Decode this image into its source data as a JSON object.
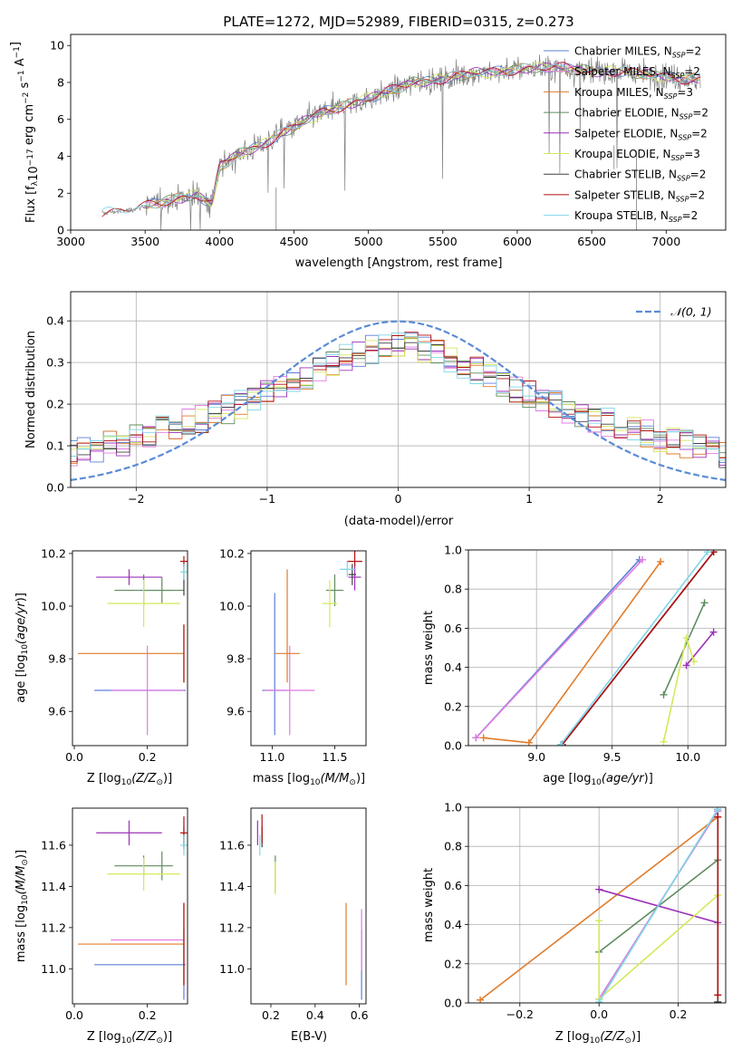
{
  "figure_title": "PLATE=1272, MJD=52989, FIBERID=0315, z=0.273",
  "series": [
    {
      "name": "Chabrier MILES",
      "suffix": ", N_SSP=2",
      "color": "#5b7fd6"
    },
    {
      "name": "Salpeter MILES",
      "suffix": ", N_SSP=2",
      "color": "#e07be0"
    },
    {
      "name": "Kroupa MILES",
      "suffix": ", N_SSP=3",
      "color": "#e07b2a"
    },
    {
      "name": "Chabrier ELODIE",
      "suffix": ", N_SSP=2",
      "color": "#5e8c5e"
    },
    {
      "name": "Salpeter ELODIE",
      "suffix": ", N_SSP=2",
      "color": "#9b30b8"
    },
    {
      "name": "Kroupa ELODIE",
      "suffix": ", N_SSP=3",
      "color": "#d6e85a"
    },
    {
      "name": "Chabrier STELIB",
      "suffix": ", N_SSP=2",
      "color": "#404040"
    },
    {
      "name": "Salpeter STELIB",
      "suffix": ", N_SSP=2",
      "color": "#b01010"
    },
    {
      "name": "Kroupa STELIB",
      "suffix": ", N_SSP=2",
      "color": "#7fd6e8"
    }
  ],
  "chart_data": [
    {
      "id": "spectrum",
      "type": "line",
      "title": "PLATE=1272, MJD=52989, FIBERID=0315, z=0.273",
      "xlabel": "wavelength [Angstrom, rest frame]",
      "ylabel": "Flux [f_λ10^-17 erg cm^-2 s^-1 A^-1]",
      "xlim": [
        3000,
        7400
      ],
      "ylim": [
        0,
        10.6
      ],
      "xticks": [
        3000,
        3500,
        4000,
        4500,
        5000,
        5500,
        6000,
        6500,
        7000
      ],
      "yticks": [
        0,
        2,
        4,
        6,
        8,
        10
      ],
      "data_color": "#808080",
      "continuum": {
        "x": [
          3200,
          3400,
          3550,
          3700,
          3850,
          3950,
          4000,
          4100,
          4300,
          4500,
          4700,
          4900,
          5100,
          5300,
          5500,
          5700,
          5900,
          6100,
          6300,
          6500,
          6700,
          6900,
          7100,
          7230
        ],
        "y": [
          0.9,
          1.1,
          1.4,
          1.7,
          1.9,
          1.4,
          3.4,
          4.0,
          4.7,
          5.6,
          6.4,
          6.9,
          7.4,
          8.0,
          8.2,
          8.5,
          8.6,
          8.8,
          8.8,
          8.6,
          8.6,
          8.4,
          8.2,
          8.2
        ]
      },
      "legend": "upper right"
    },
    {
      "id": "residuals",
      "type": "histogram",
      "xlabel": "(data-model)/error",
      "ylabel": "Normed distribution",
      "xlim": [
        -2.5,
        2.5
      ],
      "ylim": [
        0,
        0.47
      ],
      "xticks": [
        -2,
        -1,
        0,
        1,
        2
      ],
      "yticks": [
        0,
        0.1,
        0.2,
        0.3,
        0.4
      ],
      "bin_width": 0.1,
      "reference": {
        "label": "𝒩(0, 1)",
        "mean": 0,
        "sigma": 1,
        "color": "#5b8bd6"
      },
      "legend": "upper right",
      "grid": true
    },
    {
      "id": "age_vs_Z",
      "type": "errorbar",
      "xlabel": "Z [log10(Z/Z⊙)]",
      "ylabel": "age [log10(age/yr)]",
      "xlim": [
        -0.005,
        0.31
      ],
      "ylim": [
        9.47,
        10.21
      ],
      "xticks": [
        0.0,
        0.2
      ],
      "yticks": [
        9.6,
        9.8,
        10.0,
        10.2
      ],
      "points": [
        {
          "s": 0,
          "x": 0.18,
          "xerr": [
            0.125,
            0.125
          ],
          "y": 9.68,
          "yerr": [
            0,
            0
          ]
        },
        {
          "s": 1,
          "x": 0.2,
          "xerr": [
            0.1,
            0.1
          ],
          "y": 9.68,
          "yerr": [
            0.17,
            0.17
          ]
        },
        {
          "s": 2,
          "x": 0.155,
          "xerr": [
            0.145,
            0.145
          ],
          "y": 9.82,
          "yerr": [
            0,
            0
          ]
        },
        {
          "s": 2,
          "x": 0.3,
          "xerr": [
            0,
            0
          ],
          "y": 9.82,
          "yerr": [
            0.11,
            0.11
          ]
        },
        {
          "s": 3,
          "x": 0.24,
          "xerr": [
            0.06,
            0.06
          ],
          "y": 10.06,
          "yerr": [
            0.05,
            0.05
          ]
        },
        {
          "s": 3,
          "x": 0.19,
          "xerr": [
            0.08,
            0.08
          ],
          "y": 10.06,
          "yerr": [
            0.06,
            0.06
          ]
        },
        {
          "s": 4,
          "x": 0.15,
          "xerr": [
            0.09,
            0.09
          ],
          "y": 10.11,
          "yerr": [
            0.03,
            0.03
          ]
        },
        {
          "s": 5,
          "x": 0.19,
          "xerr": [
            0.1,
            0.1
          ],
          "y": 10.01,
          "yerr": [
            0.09,
            0.09
          ]
        },
        {
          "s": 6,
          "x": 0.3,
          "xerr": [
            0,
            0
          ],
          "y": 10.1,
          "yerr": [
            0.06,
            0.06
          ]
        },
        {
          "s": 7,
          "x": 0.3,
          "xerr": [
            0.01,
            0.01
          ],
          "y": 10.17,
          "yerr": [
            0.02,
            0.02
          ]
        },
        {
          "s": 7,
          "x": 0.3,
          "xerr": [
            0,
            0
          ],
          "y": 9.82,
          "yerr": [
            0.11,
            0.11
          ]
        },
        {
          "s": 8,
          "x": 0.3,
          "xerr": [
            0.01,
            0.01
          ],
          "y": 10.13,
          "yerr": [
            0.03,
            0.03
          ]
        }
      ]
    },
    {
      "id": "age_vs_mass",
      "type": "errorbar",
      "xlabel": "mass [log10(M/M⊙)]",
      "ylabel": "",
      "xlim": [
        10.83,
        11.75
      ],
      "ylim": [
        9.47,
        10.21
      ],
      "xticks": [
        11.0,
        11.5
      ],
      "yticks": [
        9.6,
        9.8,
        10.0,
        10.2
      ],
      "points": [
        {
          "s": 0,
          "x": 11.02,
          "xerr": [
            0.1,
            0.1
          ],
          "y": 9.68,
          "yerr": [
            0.17,
            0.37
          ]
        },
        {
          "s": 1,
          "x": 11.14,
          "xerr": [
            0.2,
            0.2
          ],
          "y": 9.68,
          "yerr": [
            0.17,
            0.17
          ]
        },
        {
          "s": 2,
          "x": 11.12,
          "xerr": [
            0.1,
            0.1
          ],
          "y": 9.82,
          "yerr": [
            0.11,
            0.32
          ]
        },
        {
          "s": 3,
          "x": 11.5,
          "xerr": [
            0.07,
            0.07
          ],
          "y": 10.06,
          "yerr": [
            0.06,
            0.06
          ]
        },
        {
          "s": 4,
          "x": 11.66,
          "xerr": [
            0.05,
            0.05
          ],
          "y": 10.11,
          "yerr": [
            0.05,
            0.05
          ]
        },
        {
          "s": 5,
          "x": 11.46,
          "xerr": [
            0.06,
            0.06
          ],
          "y": 10.01,
          "yerr": [
            0.09,
            0.09
          ]
        },
        {
          "s": 6,
          "x": 11.64,
          "xerr": [
            0.03,
            0.03
          ],
          "y": 10.12,
          "yerr": [
            0.04,
            0.04
          ]
        },
        {
          "s": 7,
          "x": 11.66,
          "xerr": [
            0.06,
            0.06
          ],
          "y": 10.17,
          "yerr": [
            0.02,
            0.1
          ]
        },
        {
          "s": 8,
          "x": 11.6,
          "xerr": [
            0.06,
            0.06
          ],
          "y": 10.14,
          "yerr": [
            0.03,
            0.03
          ]
        }
      ]
    },
    {
      "id": "weight_vs_age",
      "type": "line",
      "xlabel": "age [log10(age/yr)]",
      "ylabel": "mass weight",
      "xlim": [
        8.55,
        10.25
      ],
      "ylim": [
        0,
        1
      ],
      "xticks": [
        9.0,
        9.5,
        10.0
      ],
      "yticks": [
        0.0,
        0.2,
        0.4,
        0.6,
        0.8,
        1.0
      ],
      "grid": true,
      "lines": [
        {
          "s": 0,
          "x": [
            8.6,
            9.68
          ],
          "y": [
            0.04,
            0.95
          ]
        },
        {
          "s": 1,
          "x": [
            8.6,
            9.7
          ],
          "y": [
            0.04,
            0.95
          ]
        },
        {
          "s": 2,
          "x": [
            8.65,
            8.95,
            9.82
          ],
          "y": [
            0.04,
            0.015,
            0.94
          ]
        },
        {
          "s": 3,
          "x": [
            9.84,
            10.11
          ],
          "y": [
            0.26,
            0.73
          ]
        },
        {
          "s": 4,
          "x": [
            9.99,
            10.17
          ],
          "y": [
            0.41,
            0.58
          ]
        },
        {
          "s": 5,
          "x": [
            9.84,
            9.99,
            10.04
          ],
          "y": [
            0.02,
            0.55,
            0.43
          ]
        },
        {
          "s": 6,
          "x": [
            9.17,
            10.17
          ],
          "y": [
            0.005,
            0.99
          ]
        },
        {
          "s": 7,
          "x": [
            9.17,
            10.17
          ],
          "y": [
            0.005,
            0.99
          ]
        },
        {
          "s": 8,
          "x": [
            9.16,
            10.13
          ],
          "y": [
            0.005,
            0.99
          ]
        }
      ]
    },
    {
      "id": "mass_vs_Z",
      "type": "errorbar",
      "xlabel": "Z [log10(Z/Z⊙)]",
      "ylabel": "mass [log10(M/M⊙)]",
      "xlim": [
        -0.005,
        0.31
      ],
      "ylim": [
        10.83,
        11.78
      ],
      "xticks": [
        0.0,
        0.2
      ],
      "yticks": [
        11.0,
        11.2,
        11.4,
        11.6
      ],
      "points": [
        {
          "s": 0,
          "x": 0.18,
          "xerr": [
            0.125,
            0.125
          ],
          "y": 11.02,
          "yerr": [
            0,
            0
          ]
        },
        {
          "s": 0,
          "x": 0.3,
          "xerr": [
            0,
            0
          ],
          "y": 11.02,
          "yerr": [
            0.17,
            0.17
          ]
        },
        {
          "s": 1,
          "x": 0.2,
          "xerr": [
            0.1,
            0.1
          ],
          "y": 11.14,
          "yerr": [
            0,
            0
          ]
        },
        {
          "s": 2,
          "x": 0.155,
          "xerr": [
            0.145,
            0.145
          ],
          "y": 11.12,
          "yerr": [
            0,
            0
          ]
        },
        {
          "s": 2,
          "x": 0.3,
          "xerr": [
            0,
            0
          ],
          "y": 11.12,
          "yerr": [
            0.2,
            0.2
          ]
        },
        {
          "s": 3,
          "x": 0.19,
          "xerr": [
            0.08,
            0.08
          ],
          "y": 11.5,
          "yerr": [
            0.05,
            0.05
          ]
        },
        {
          "s": 3,
          "x": 0.24,
          "xerr": [
            0,
            0
          ],
          "y": 11.5,
          "yerr": [
            0.07,
            0.07
          ]
        },
        {
          "s": 4,
          "x": 0.15,
          "xerr": [
            0.09,
            0.09
          ],
          "y": 11.66,
          "yerr": [
            0.06,
            0.06
          ]
        },
        {
          "s": 5,
          "x": 0.19,
          "xerr": [
            0.1,
            0.1
          ],
          "y": 11.46,
          "yerr": [
            0.08,
            0.08
          ]
        },
        {
          "s": 6,
          "x": 0.3,
          "xerr": [
            0,
            0
          ],
          "y": 11.64,
          "yerr": [
            0.05,
            0.05
          ]
        },
        {
          "s": 7,
          "x": 0.3,
          "xerr": [
            0.01,
            0.01
          ],
          "y": 11.66,
          "yerr": [
            0.08,
            0.08
          ]
        },
        {
          "s": 7,
          "x": 0.3,
          "xerr": [
            0,
            0
          ],
          "y": 11.12,
          "yerr": [
            0.2,
            0.2
          ]
        },
        {
          "s": 8,
          "x": 0.3,
          "xerr": [
            0.01,
            0.01
          ],
          "y": 11.6,
          "yerr": [
            0.05,
            0.05
          ]
        }
      ]
    },
    {
      "id": "mass_vs_EBV",
      "type": "errorbar",
      "xlabel": "E(B-V)",
      "ylabel": "",
      "xlim": [
        0.11,
        0.63
      ],
      "ylim": [
        10.83,
        11.78
      ],
      "xticks": [
        0.2,
        0.4,
        0.6
      ],
      "yticks": [
        11.0,
        11.2,
        11.4,
        11.6
      ],
      "points": [
        {
          "s": 0,
          "x": 0.61,
          "xerr": [
            0,
            0
          ],
          "y": 11.02,
          "yerr": [
            0.17,
            0.17
          ]
        },
        {
          "s": 1,
          "x": 0.61,
          "xerr": [
            0,
            0
          ],
          "y": 11.14,
          "yerr": [
            0.15,
            0.15
          ]
        },
        {
          "s": 2,
          "x": 0.54,
          "xerr": [
            0,
            0
          ],
          "y": 11.12,
          "yerr": [
            0.2,
            0.2
          ]
        },
        {
          "s": 3,
          "x": 0.22,
          "xerr": [
            0,
            0
          ],
          "y": 11.46,
          "yerr": [
            0.09,
            0.09
          ]
        },
        {
          "s": 4,
          "x": 0.14,
          "xerr": [
            0,
            0
          ],
          "y": 11.66,
          "yerr": [
            0.06,
            0.06
          ]
        },
        {
          "s": 5,
          "x": 0.22,
          "xerr": [
            0,
            0
          ],
          "y": 11.44,
          "yerr": [
            0.08,
            0.08
          ]
        },
        {
          "s": 6,
          "x": 0.16,
          "xerr": [
            0,
            0
          ],
          "y": 11.64,
          "yerr": [
            0.05,
            0.05
          ]
        },
        {
          "s": 7,
          "x": 0.16,
          "xerr": [
            0,
            0
          ],
          "y": 11.68,
          "yerr": [
            0.07,
            0.07
          ]
        },
        {
          "s": 8,
          "x": 0.15,
          "xerr": [
            0,
            0
          ],
          "y": 11.6,
          "yerr": [
            0.05,
            0.05
          ]
        }
      ]
    },
    {
      "id": "weight_vs_Z",
      "type": "line",
      "xlabel": "Z [log10(Z/Z⊙)]",
      "ylabel": "mass weight",
      "xlim": [
        -0.33,
        0.32
      ],
      "ylim": [
        0,
        1
      ],
      "xticks": [
        -0.2,
        0.0,
        0.2
      ],
      "yticks": [
        0.0,
        0.2,
        0.4,
        0.6,
        0.8,
        1.0
      ],
      "grid": true,
      "lines": [
        {
          "s": 0,
          "x": [
            0.0,
            0.3
          ],
          "y": [
            0.02,
            0.98
          ]
        },
        {
          "s": 1,
          "x": [
            0.0,
            0.3
          ],
          "y": [
            0.02,
            0.98
          ]
        },
        {
          "s": 2,
          "x": [
            -0.3,
            0.3
          ],
          "y": [
            0.015,
            0.95
          ]
        },
        {
          "s": 3,
          "x": [
            0.0,
            0.3
          ],
          "y": [
            0.26,
            0.73
          ]
        },
        {
          "s": 4,
          "x": [
            0.0,
            0.3
          ],
          "y": [
            0.58,
            0.41
          ]
        },
        {
          "s": 5,
          "x": [
            0.0,
            0.0,
            0.3
          ],
          "y": [
            0.42,
            0.02,
            0.55
          ]
        },
        {
          "s": 6,
          "x": [
            0.3,
            0.3
          ],
          "y": [
            0.005,
            0.99
          ]
        },
        {
          "s": 7,
          "x": [
            0.3,
            0.3
          ],
          "y": [
            0.04,
            0.95
          ]
        },
        {
          "s": 8,
          "x": [
            0.0,
            0.3
          ],
          "y": [
            0.005,
            0.99
          ]
        }
      ]
    }
  ]
}
